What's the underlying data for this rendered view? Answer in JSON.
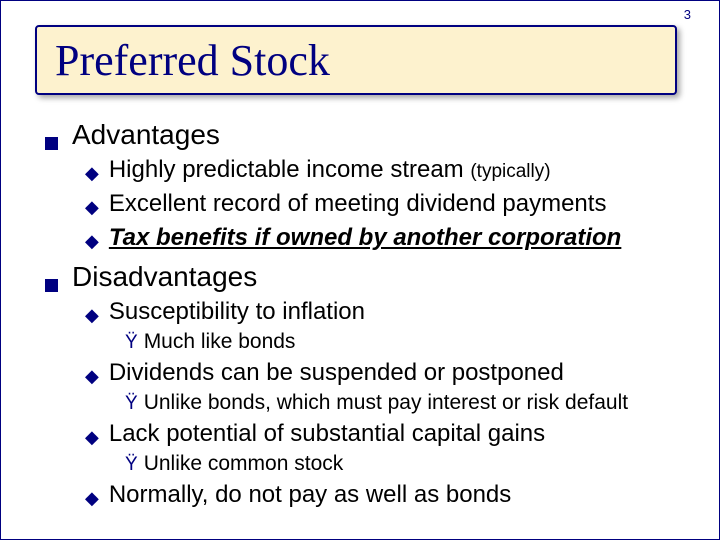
{
  "page_number": "3",
  "title": "Preferred Stock",
  "colors": {
    "frame_border": "#000080",
    "title_box_bg": "#fdf2ce",
    "title_box_border": "#000080",
    "title_text": "#000080",
    "body_text": "#000000",
    "bullet_square": "#000080",
    "bullet_round": "#000080",
    "bullet_sub": "#000080",
    "background": "#ffffff"
  },
  "typography": {
    "title_font": "Times New Roman",
    "title_size_pt": 33,
    "body_font": "Arial",
    "l1_size_pt": 21,
    "l2_size_pt": 18,
    "l3_size_pt": 16
  },
  "glyphs": {
    "l2_bullet": "◆",
    "l3_bullet": "Ÿ"
  },
  "sections": [
    {
      "heading": "Advantages",
      "items": [
        {
          "text": "Highly predictable income stream ",
          "paren": "(typically)",
          "style": "plain"
        },
        {
          "text": "Excellent record of meeting dividend payments",
          "style": "plain"
        },
        {
          "text": "Tax benefits if owned by another corporation",
          "style": "bold-italic-underline"
        }
      ]
    },
    {
      "heading": "Disadvantages",
      "items": [
        {
          "text": "Susceptibility to inflation",
          "sub": [
            "Much like bonds"
          ]
        },
        {
          "text": "Dividends can be suspended or postponed",
          "sub": [
            "Unlike bonds, which must pay interest or risk default"
          ]
        },
        {
          "text": "Lack potential of substantial capital gains",
          "sub": [
            "Unlike common stock"
          ]
        },
        {
          "text": "Normally, do not pay as well as bonds"
        }
      ]
    }
  ]
}
